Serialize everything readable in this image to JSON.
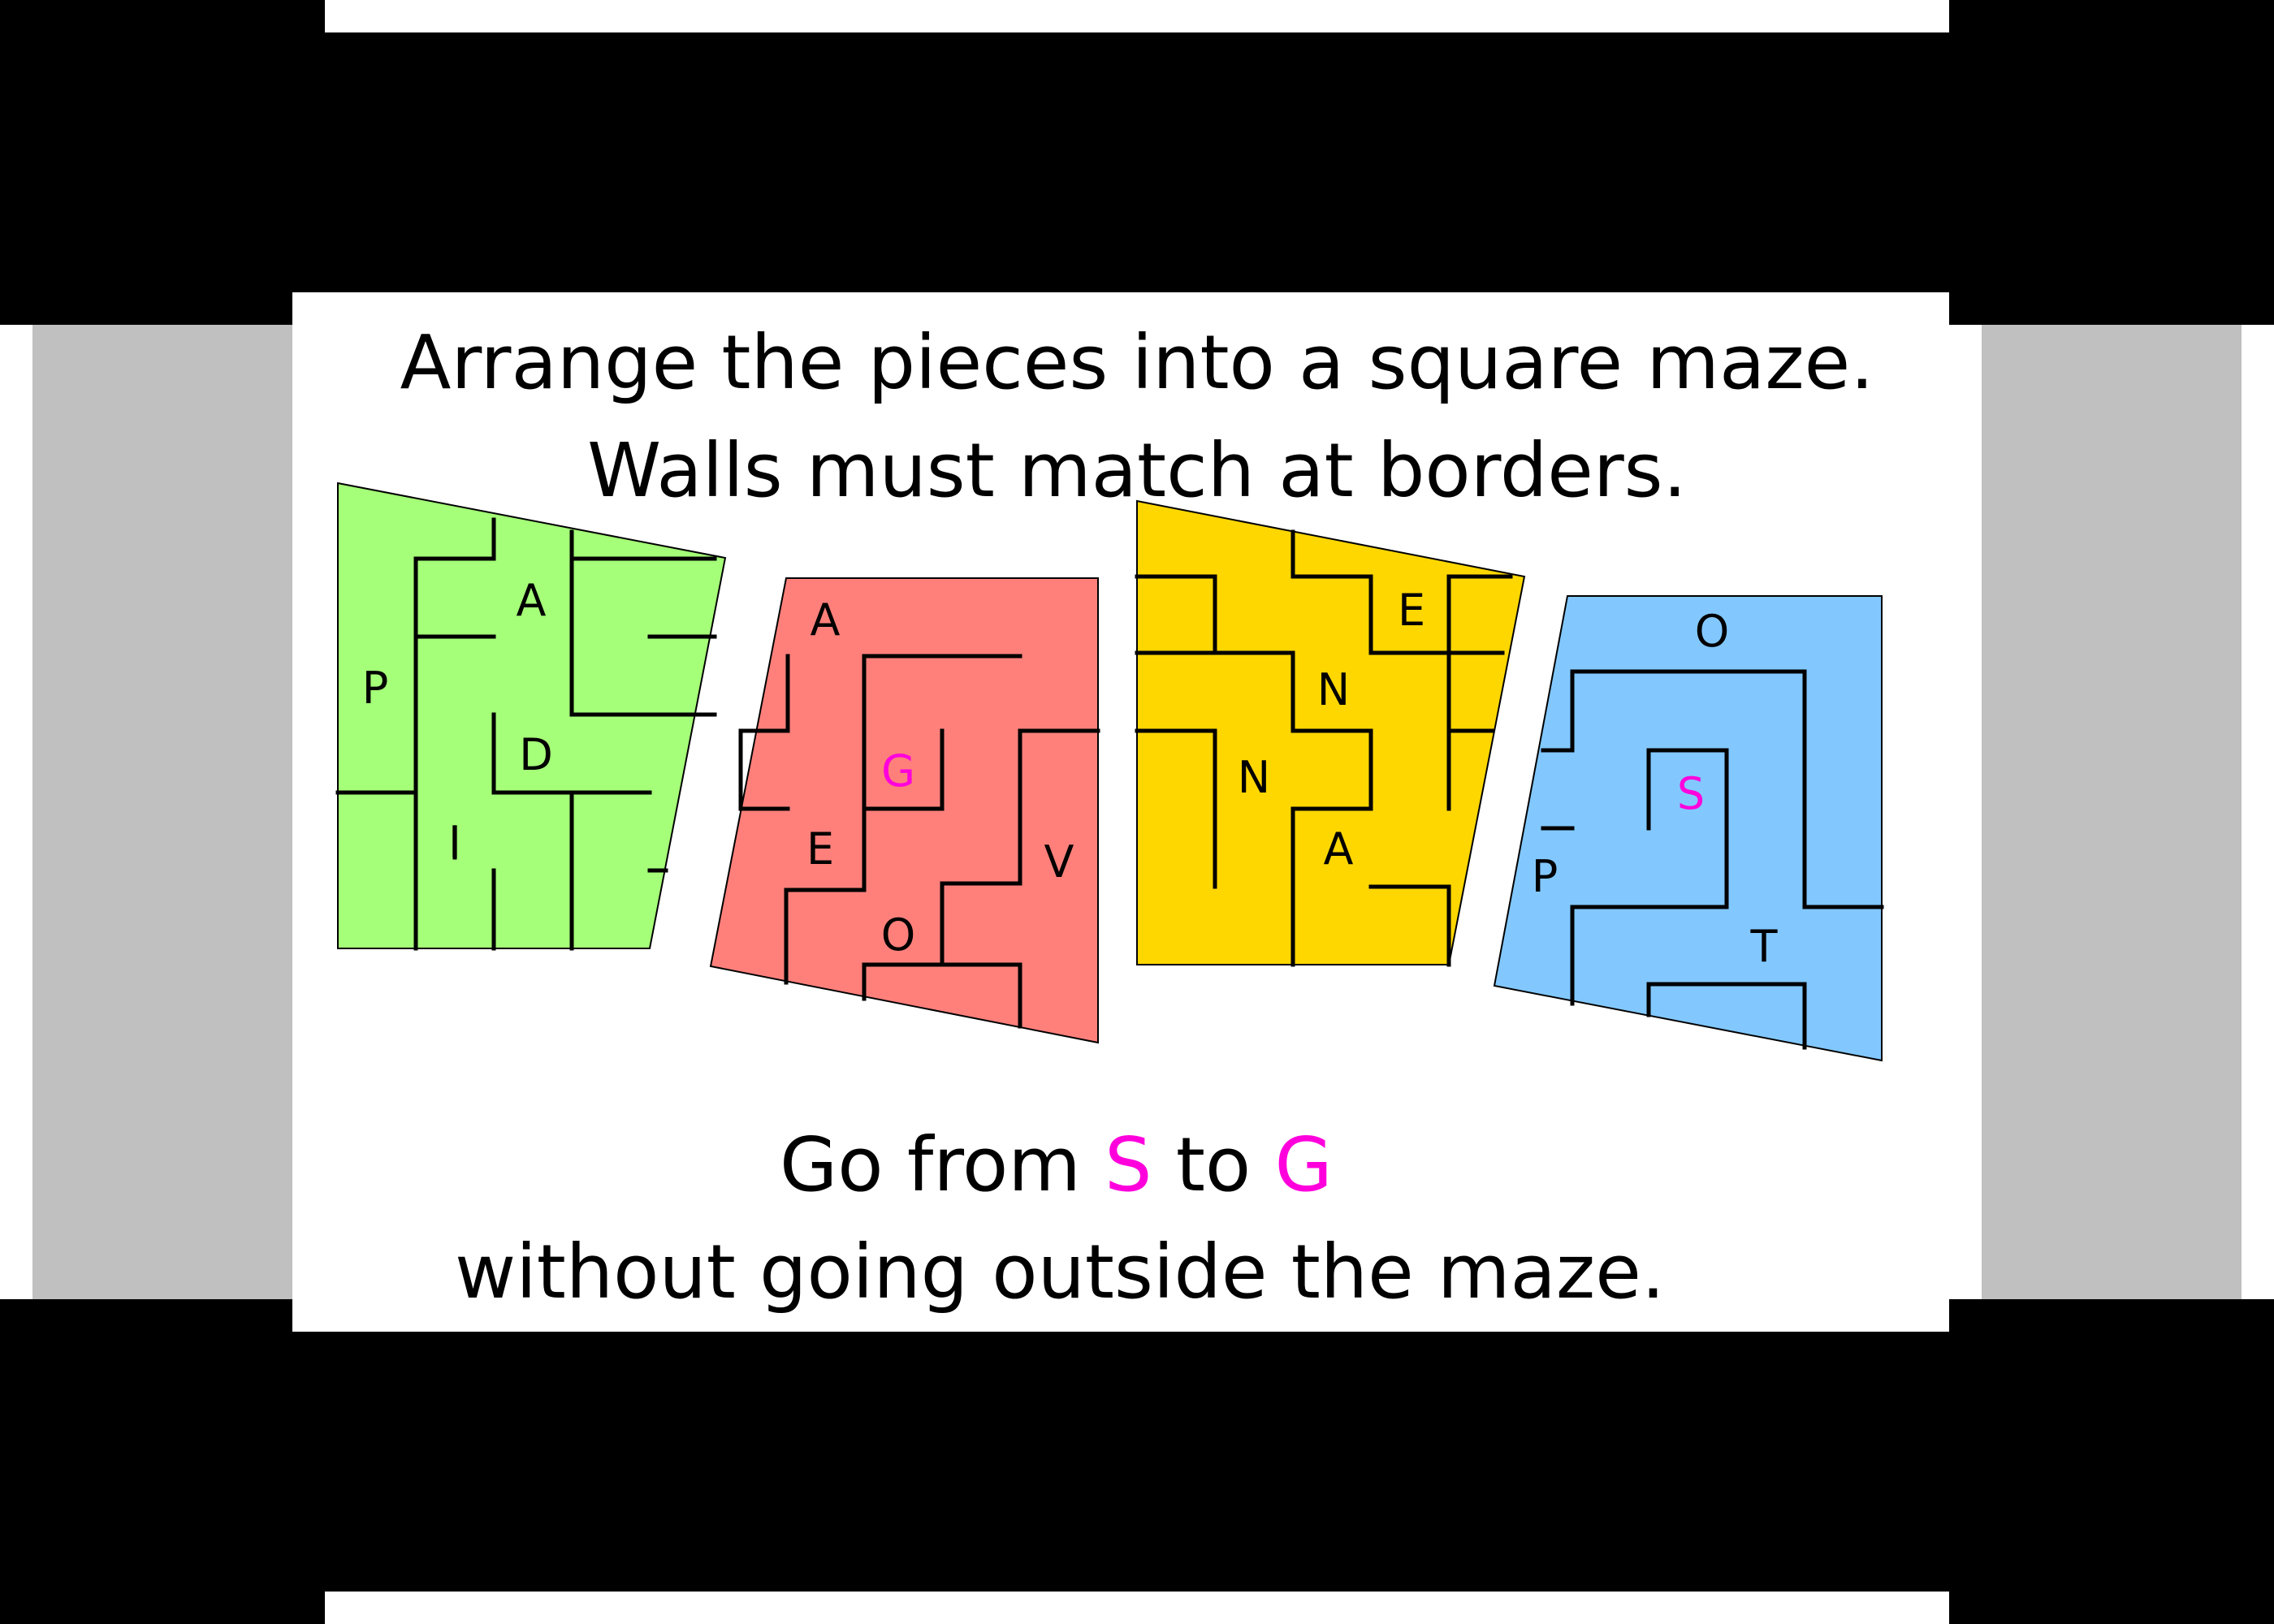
{
  "instructions": {
    "line1": "Arrange the pieces into a square maze.",
    "line2": "Walls must match at borders.",
    "line3_prefix": "Go from ",
    "line3_start": "S",
    "line3_middle": " to ",
    "line3_goal": "G",
    "line4": "without going outside the maze."
  },
  "colors": {
    "piece_green": "#a5ff78",
    "piece_red": "#ff807b",
    "piece_yellow": "#ffd700",
    "piece_blue": "#82c8ff",
    "wall": "#000000",
    "highlight_letter": "#ff00dd",
    "side_panel": "#c0c0c0",
    "band": "#000000"
  },
  "pieces": [
    {
      "name": "green",
      "letters": [
        {
          "text": "A",
          "highlight": false
        },
        {
          "text": "P",
          "highlight": false
        },
        {
          "text": "D",
          "highlight": false
        },
        {
          "text": "I",
          "highlight": false
        }
      ]
    },
    {
      "name": "red",
      "letters": [
        {
          "text": "A",
          "highlight": false
        },
        {
          "text": "G",
          "highlight": true
        },
        {
          "text": "E",
          "highlight": false
        },
        {
          "text": "V",
          "highlight": false
        },
        {
          "text": "O",
          "highlight": false
        }
      ]
    },
    {
      "name": "yellow",
      "letters": [
        {
          "text": "E",
          "highlight": false
        },
        {
          "text": "N",
          "highlight": false
        },
        {
          "text": "N",
          "highlight": false
        },
        {
          "text": "A",
          "highlight": false
        }
      ]
    },
    {
      "name": "blue",
      "letters": [
        {
          "text": "O",
          "highlight": false
        },
        {
          "text": "S",
          "highlight": true
        },
        {
          "text": "P",
          "highlight": false
        },
        {
          "text": "T",
          "highlight": false
        }
      ]
    }
  ]
}
